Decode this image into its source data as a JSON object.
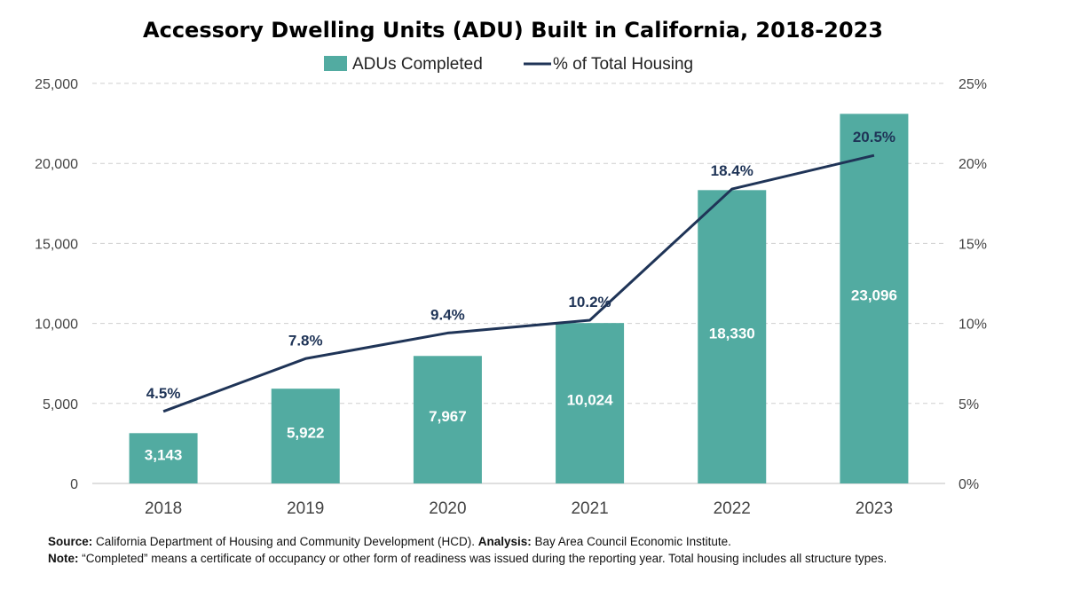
{
  "chart_data": {
    "type": "bar",
    "title": "Accessory Dwelling Units (ADU) Built in California, 2018-2023",
    "categories": [
      "2018",
      "2019",
      "2020",
      "2021",
      "2022",
      "2023"
    ],
    "series": [
      {
        "name": "ADUs Completed",
        "type": "bar",
        "axis": "left",
        "values": [
          3143,
          5922,
          7967,
          10024,
          18330,
          23096
        ],
        "labels": [
          "3,143",
          "5,922",
          "7,967",
          "10,024",
          "18,330",
          "23,096"
        ]
      },
      {
        "name": "% of Total Housing",
        "type": "line",
        "axis": "right",
        "values": [
          4.5,
          7.8,
          9.4,
          10.2,
          18.4,
          20.5
        ],
        "labels": [
          "4.5%",
          "7.8%",
          "9.4%",
          "10.2%",
          "18.4%",
          "20.5%"
        ]
      }
    ],
    "ylim": [
      0,
      25000
    ],
    "y2lim": [
      0,
      25
    ],
    "y_ticks": [
      "0",
      "5,000",
      "10,000",
      "15,000",
      "20,000",
      "25,000"
    ],
    "y2_ticks": [
      "0%",
      "5%",
      "10%",
      "15%",
      "20%",
      "25%"
    ],
    "xlabel": "",
    "ylabel": "",
    "grid": true,
    "legend_position": "top-center"
  },
  "colors": {
    "bar": "#52aba1",
    "line": "#1f3457",
    "grid": "#cfcfcf"
  },
  "footer": {
    "source_label": "Source:",
    "source_text": "California Department of Housing and Community Development (HCD).",
    "analysis_label": "Analysis:",
    "analysis_text": "Bay Area Council Economic Institute.",
    "note_label": "Note:",
    "note_text": "“Completed” means a certificate of occupancy or other form of readiness was issued during the reporting year. Total housing includes all structure types."
  }
}
